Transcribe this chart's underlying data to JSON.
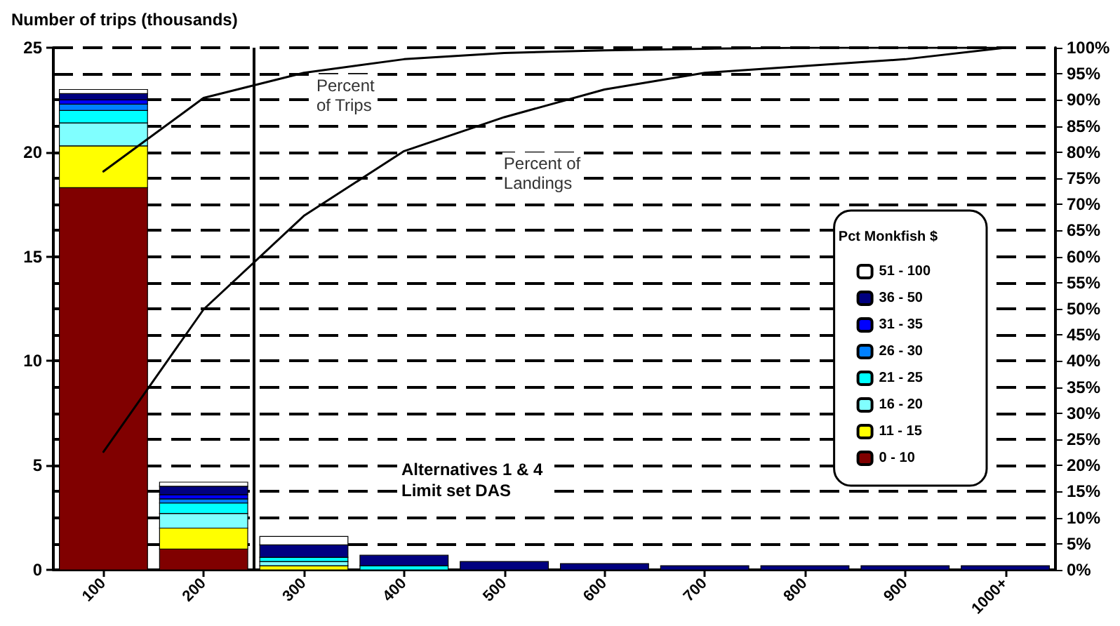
{
  "chart_data": {
    "type": "bar",
    "stacked": true,
    "ylabel": "Number of trips (thousands)",
    "legend_title": "Pct Monkfish $",
    "legend": "right",
    "grid": true,
    "marker": "none",
    "line_style": "solid",
    "x": [
      100,
      200,
      300,
      400,
      500,
      600,
      700,
      800,
      900,
      1000
    ],
    "xlim": [
      50,
      1050
    ],
    "xticks": [
      100,
      200,
      300,
      400,
      500,
      600,
      700,
      800,
      900,
      {
        "value": 1000,
        "label": "1000+"
      }
    ],
    "ylim": [
      0,
      25
    ],
    "yticks": [
      0,
      5,
      10,
      15,
      20,
      25
    ],
    "y2lim": [
      0,
      100
    ],
    "y2ticks": [
      {
        "value": 0,
        "label": "0%"
      },
      {
        "value": 5,
        "label": "5%"
      },
      {
        "value": 10,
        "label": "10%"
      },
      {
        "value": 15,
        "label": "15%"
      },
      {
        "value": 20,
        "label": "20%"
      },
      {
        "value": 25,
        "label": "25%"
      },
      {
        "value": 30,
        "label": "30%"
      },
      {
        "value": 35,
        "label": "35%"
      },
      {
        "value": 40,
        "label": "40%"
      },
      {
        "value": 45,
        "label": "45%"
      },
      {
        "value": 50,
        "label": "50%"
      },
      {
        "value": 55,
        "label": "55%"
      },
      {
        "value": 60,
        "label": "60%"
      },
      {
        "value": 65,
        "label": "65%"
      },
      {
        "value": 70,
        "label": "70%"
      },
      {
        "value": 75,
        "label": "75%"
      },
      {
        "value": 80,
        "label": "80%"
      },
      {
        "value": 85,
        "label": "85%"
      },
      {
        "value": 90,
        "label": "90%"
      },
      {
        "value": 95,
        "label": "95%"
      },
      {
        "value": 100,
        "label": "100%"
      }
    ],
    "series": [
      {
        "name": "0 - 10",
        "color": "#800000",
        "values": [
          18.3,
          1.0,
          null,
          null,
          null,
          null,
          null,
          null,
          null,
          null
        ]
      },
      {
        "name": "11 - 15",
        "color": "#ffff00",
        "values": [
          2.0,
          1.0,
          0.2,
          null,
          null,
          null,
          null,
          null,
          null,
          null
        ]
      },
      {
        "name": "16 - 20",
        "color": "#80ffff",
        "values": [
          1.1,
          0.7,
          0.2,
          null,
          null,
          null,
          null,
          null,
          null,
          null
        ]
      },
      {
        "name": "21 - 25",
        "color": "#00ffff",
        "values": [
          0.6,
          0.5,
          0.2,
          0.2,
          null,
          null,
          null,
          null,
          null,
          null
        ]
      },
      {
        "name": "26 - 30",
        "color": "#0080ff",
        "values": [
          0.3,
          0.2,
          null,
          null,
          null,
          null,
          null,
          null,
          null,
          null
        ]
      },
      {
        "name": "31 - 35",
        "color": "#0000ff",
        "values": [
          0.2,
          0.2,
          null,
          null,
          null,
          null,
          null,
          null,
          null,
          null
        ]
      },
      {
        "name": "36 - 50",
        "color": "#000080",
        "values": [
          0.3,
          0.4,
          0.6,
          0.5,
          0.4,
          0.3,
          0.2,
          0.2,
          0.2,
          0.2
        ]
      },
      {
        "name": "51 - 100",
        "color": "#ffffff",
        "values": [
          0.2,
          0.2,
          0.4,
          null,
          null,
          null,
          null,
          null,
          null,
          null
        ]
      },
      {
        "name": "Percent of Trips",
        "type": "line",
        "axis": "y2",
        "color": "#000000",
        "values": [
          76.3,
          90.4,
          95.2,
          97.8,
          99,
          99.5,
          99.8,
          100,
          100,
          100
        ]
      },
      {
        "name": "Percent of Landings",
        "type": "line",
        "axis": "y2",
        "color": "#000000",
        "values": [
          22.6,
          49.9,
          67.8,
          80.2,
          86.7,
          92,
          95.2,
          96.5,
          97.8,
          100
        ]
      }
    ],
    "ref_lines": [
      {
        "axis": "x",
        "value": 250,
        "color": "#000000"
      }
    ],
    "annotations": [
      "Alternatives 1 & 4\nLimit set DAS"
    ]
  }
}
